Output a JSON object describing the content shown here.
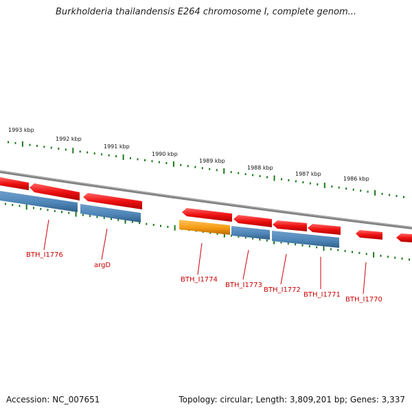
{
  "title": "Burkholderia thailandensis E264 chromosome I, complete genom...",
  "footer": {
    "accession": "Accession: NC_007651",
    "topology": "Topology: circular; Length: 3,809,201 bp; Genes: 3,337"
  },
  "kbp_labels": [
    "1993 kbp",
    "1992 kbp",
    "1991 kbp",
    "1990 kbp",
    "1989 kbp",
    "1988 kbp",
    "1987 kbp",
    "1986 kbp"
  ],
  "gene_labels": [
    "BTH_I1776",
    "argD",
    "BTH_I1774",
    "BTH_I1773",
    "BTH_I1772",
    "BTH_I1771",
    "BTH_I1770"
  ],
  "colors": {
    "backbone": "#8c8c8c",
    "ticks": "#1a7a1a",
    "gene_red": "#ee1111",
    "gene_blue": "#4f86b8",
    "gene_orange": "#f59a14",
    "label_red": "#cc0000"
  }
}
